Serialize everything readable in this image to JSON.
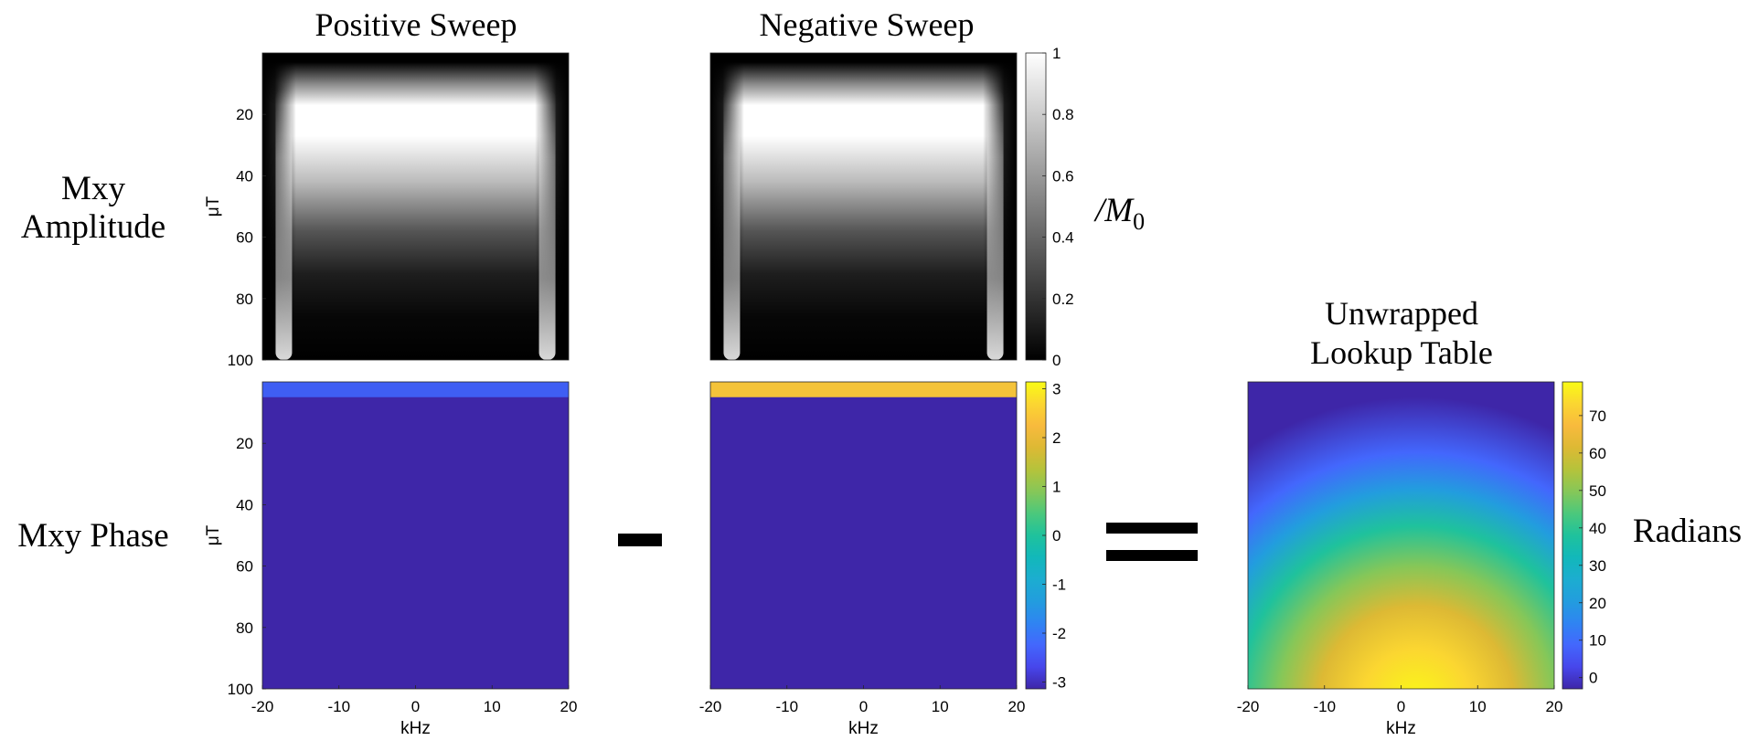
{
  "colors": {
    "grayscale": [
      "#000000",
      "#ffffff"
    ],
    "parula": [
      "#3e26a8",
      "#4746eb",
      "#4367fd",
      "#2f84f2",
      "#229dde",
      "#1cadd0",
      "#12b8ba",
      "#1fc29c",
      "#4bc87c",
      "#86c758",
      "#b5c33b",
      "#ddb934",
      "#f8ba3d",
      "#fbd631",
      "#f9fb15"
    ]
  },
  "titles": {
    "positive_sweep": "Positive Sweep",
    "negative_sweep": "Negative Sweep",
    "lookup_line1": "Unwrapped",
    "lookup_line2": "Lookup Table"
  },
  "row_labels": {
    "amplitude_line1": "Mxy",
    "amplitude_line2": "Amplitude",
    "phase": "Mxy Phase"
  },
  "operators": {
    "minus": "-",
    "equals": "="
  },
  "colorbar_labels": {
    "amplitude_prefix": "/M",
    "amplitude_subscript": "0",
    "lookup": "Radians"
  },
  "axes": {
    "ylabel": "μT",
    "xlabel": "kHz"
  },
  "chart_data": [
    {
      "type": "heatmap",
      "name": "Positive Sweep / Mxy Amplitude",
      "title": "Positive Sweep",
      "row_label": "Mxy Amplitude",
      "ylabel": "μT",
      "xlabel": "",
      "x_range": [
        -20,
        20
      ],
      "y_range": [
        0,
        100
      ],
      "y_direction": "reversed",
      "yticks": [
        "20",
        "40",
        "60",
        "80",
        "100"
      ],
      "xticks": [],
      "colormap": "gray",
      "clim": [
        0,
        1
      ]
    },
    {
      "type": "heatmap",
      "name": "Negative Sweep / Mxy Amplitude",
      "title": "Negative Sweep",
      "ylabel": "",
      "xlabel": "",
      "x_range": [
        -20,
        20
      ],
      "y_range": [
        0,
        100
      ],
      "y_direction": "reversed",
      "yticks": [],
      "xticks": [],
      "colormap": "gray",
      "clim": [
        0,
        1
      ],
      "colorbar": {
        "ticks": [
          "0",
          "0.2",
          "0.4",
          "0.6",
          "0.8",
          "1"
        ],
        "label": "/M0"
      }
    },
    {
      "type": "heatmap",
      "name": "Positive Sweep / Mxy Phase",
      "row_label": "Mxy Phase",
      "ylabel": "μT",
      "xlabel": "kHz",
      "x_range": [
        -20,
        20
      ],
      "y_range": [
        0,
        100
      ],
      "y_direction": "reversed",
      "yticks": [
        "20",
        "40",
        "60",
        "80",
        "100"
      ],
      "xticks": [
        "-20",
        "-10",
        "0",
        "10",
        "20"
      ],
      "colormap": "parula",
      "clim": [
        -3.14,
        3.14
      ]
    },
    {
      "type": "heatmap",
      "name": "Negative Sweep / Mxy Phase",
      "ylabel": "",
      "xlabel": "kHz",
      "x_range": [
        -20,
        20
      ],
      "y_range": [
        0,
        100
      ],
      "y_direction": "reversed",
      "yticks": [],
      "xticks": [
        "-20",
        "-10",
        "0",
        "10",
        "20"
      ],
      "colormap": "parula",
      "clim": [
        -3.14,
        3.14
      ],
      "colorbar": {
        "ticks": [
          "-3",
          "-2",
          "-1",
          "0",
          "1",
          "2",
          "3"
        ],
        "label": ""
      }
    },
    {
      "type": "heatmap",
      "name": "Unwrapped Lookup Table",
      "title": "Unwrapped Lookup Table",
      "ylabel": "",
      "xlabel": "kHz",
      "x_range": [
        -20,
        20
      ],
      "y_range": [
        0,
        100
      ],
      "y_direction": "reversed",
      "yticks": [],
      "xticks": [
        "-20",
        "-10",
        "0",
        "10",
        "20"
      ],
      "colormap": "parula",
      "clim": [
        -3,
        79
      ],
      "colorbar": {
        "ticks": [
          "0",
          "10",
          "20",
          "30",
          "40",
          "50",
          "60",
          "70"
        ],
        "label": "Radians"
      }
    }
  ]
}
